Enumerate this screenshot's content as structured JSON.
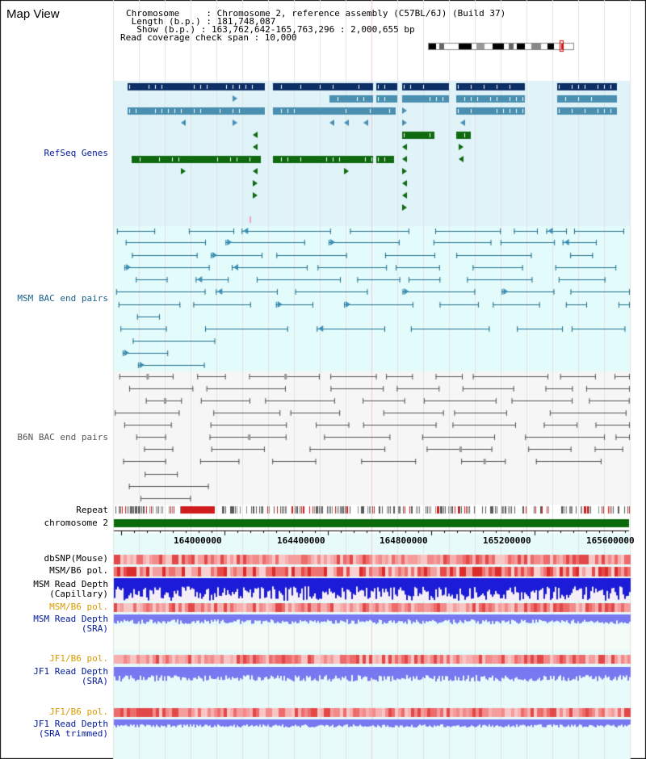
{
  "header": {
    "title": "Map View",
    "chromosome_line": "Chromosome     : Chromosome 2, reference assembly (C57BL/6J) (Build 37)",
    "length_line": " Length (b.p.) : 181,748,087",
    "show_line": "  Show (b.p.) : 163,762,642-165,763,296 : 2,000,655 bp",
    "coverage_line": "Read coverage check span : 10,000"
  },
  "tracks": {
    "refseq": "RefSeq Genes",
    "msm_bac": "MSM BAC end pairs",
    "b6n_bac": "B6N BAC end pairs",
    "repeat": "Repeat",
    "chromosome": "chromosome 2",
    "dbsnp": "dbSNP(Mouse)",
    "msm_b6_pol_1": "MSM/B6 pol.",
    "msm_depth_cap": "MSM Read Depth\n(Capillary)",
    "msm_b6_pol_2": "MSM/B6 pol.",
    "msm_depth_sra": "MSM Read Depth\n(SRA)",
    "jf1_b6_pol_1": "JF1/B6 pol.",
    "jf1_depth_sra": "JF1 Read Depth\n(SRA)",
    "jf1_b6_pol_2": "JF1/B6 pol.",
    "jf1_depth_trim": "JF1 Read Depth\n(SRA trimmed)"
  },
  "axis": {
    "ticks": [
      "164000000",
      "164400000",
      "164800000",
      "165200000",
      "165600000"
    ]
  },
  "colors": {
    "refseq_bg": "#e0f3f9",
    "msm_bg": "#e4fbfb",
    "b6n_bg": "#f6f6f6",
    "gene_dark": "#0b2f66",
    "gene_mid": "#4a8fb0",
    "gene_green": "#0f6a0f",
    "msm_line": "#1a6f8e",
    "b6n_line": "#555555",
    "chromosome_bar": "#0b6b0b",
    "label_blue": "#00189c",
    "label_orange": "#d99a00",
    "label_teal": "#1a5f8a",
    "depth_blue": "#1c1cd8",
    "depth_light": "#7878f0"
  }
}
